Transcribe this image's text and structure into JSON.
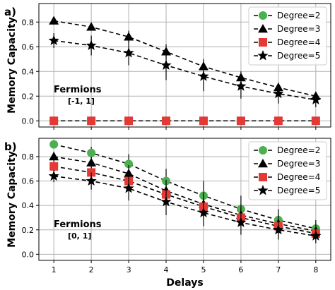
{
  "chart_data": [
    {
      "type": "line",
      "panel_label": "a)",
      "annotation": [
        "Fermions",
        "[-1, 1]"
      ],
      "xlabel": "",
      "ylabel": "Memory Capacity",
      "x": [
        1,
        2,
        3,
        4,
        5,
        6,
        7,
        8
      ],
      "xlim": [
        0.6,
        8.4
      ],
      "ylim": [
        -0.05,
        0.95
      ],
      "yticks": [
        "0.0",
        "0.2",
        "0.4",
        "0.6",
        "0.8"
      ],
      "xticks": [
        "1",
        "2",
        "3",
        "4",
        "5",
        "6",
        "7",
        "8"
      ],
      "grid": true,
      "legend_position": "top-right",
      "series": [
        {
          "name": "Degree=2",
          "marker": "circle",
          "color": "#4caf50",
          "values": [
            0,
            0,
            0,
            0,
            0,
            0,
            0,
            0
          ],
          "errors": [
            0,
            0,
            0,
            0,
            0,
            0,
            0,
            0
          ]
        },
        {
          "name": "Degree=3",
          "marker": "triangle",
          "color": "#000000",
          "values": [
            0.81,
            0.76,
            0.68,
            0.56,
            0.44,
            0.35,
            0.27,
            0.2
          ],
          "errors": [
            0.03,
            0.03,
            0.05,
            0.06,
            0.06,
            0.05,
            0.04,
            0.03
          ]
        },
        {
          "name": "Degree=4",
          "marker": "square",
          "color": "#e53935",
          "values": [
            0,
            0,
            0,
            0,
            0,
            0,
            0,
            0
          ],
          "errors": [
            0,
            0,
            0,
            0,
            0,
            0,
            0,
            0
          ]
        },
        {
          "name": "Degree=5",
          "marker": "star",
          "color": "#000000",
          "values": [
            0.65,
            0.61,
            0.55,
            0.45,
            0.36,
            0.28,
            0.22,
            0.17
          ],
          "errors": [
            0.06,
            0.08,
            0.1,
            0.12,
            0.12,
            0.1,
            0.08,
            0.06
          ]
        }
      ]
    },
    {
      "type": "line",
      "panel_label": "b)",
      "annotation": [
        "Fermions",
        "[0, 1]"
      ],
      "xlabel": "Delays",
      "ylabel": "Memory Capacity",
      "x": [
        1,
        2,
        3,
        4,
        5,
        6,
        7,
        8
      ],
      "xlim": [
        0.6,
        8.4
      ],
      "ylim": [
        -0.05,
        0.95
      ],
      "yticks": [
        "0.0",
        "0.2",
        "0.4",
        "0.6",
        "0.8"
      ],
      "xticks": [
        "1",
        "2",
        "3",
        "4",
        "5",
        "6",
        "7",
        "8"
      ],
      "grid": true,
      "legend_position": "top-right",
      "series": [
        {
          "name": "Degree=2",
          "marker": "circle",
          "color": "#4caf50",
          "values": [
            0.9,
            0.83,
            0.74,
            0.6,
            0.48,
            0.37,
            0.28,
            0.21
          ],
          "errors": [
            0.03,
            0.05,
            0.08,
            0.1,
            0.12,
            0.11,
            0.09,
            0.07
          ]
        },
        {
          "name": "Degree=3",
          "marker": "triangle",
          "color": "#000000",
          "values": [
            0.8,
            0.75,
            0.66,
            0.52,
            0.41,
            0.32,
            0.25,
            0.19
          ],
          "errors": [
            0.04,
            0.05,
            0.07,
            0.09,
            0.1,
            0.09,
            0.08,
            0.06
          ]
        },
        {
          "name": "Degree=4",
          "marker": "square",
          "color": "#e53935",
          "values": [
            0.72,
            0.67,
            0.6,
            0.49,
            0.39,
            0.3,
            0.23,
            0.17
          ],
          "errors": [
            0.04,
            0.05,
            0.07,
            0.08,
            0.09,
            0.08,
            0.07,
            0.05
          ]
        },
        {
          "name": "Degree=5",
          "marker": "star",
          "color": "#000000",
          "values": [
            0.64,
            0.6,
            0.54,
            0.43,
            0.34,
            0.26,
            0.2,
            0.15
          ],
          "errors": [
            0.05,
            0.07,
            0.1,
            0.11,
            0.11,
            0.1,
            0.08,
            0.06
          ]
        }
      ]
    }
  ]
}
